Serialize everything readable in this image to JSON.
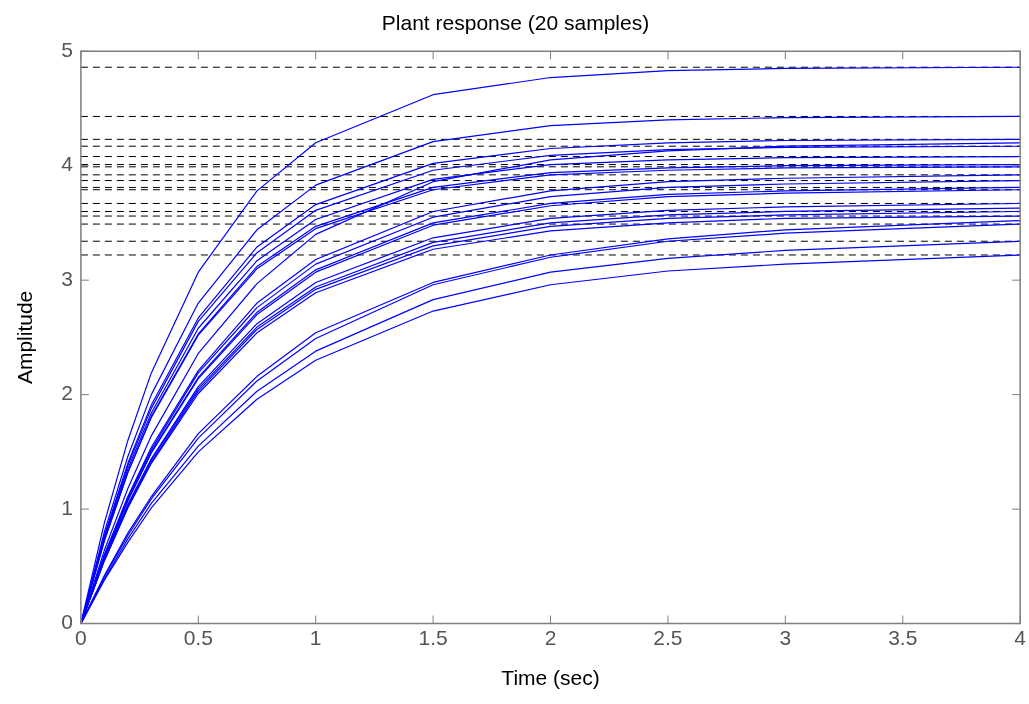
{
  "chart_data": {
    "type": "line",
    "title": "Plant response (20 samples)",
    "xlabel": "Time (sec)",
    "ylabel": "Amplitude",
    "legend": false,
    "grid": false,
    "x": [
      0,
      0.1,
      0.2,
      0.3,
      0.5,
      0.75,
      1,
      1.5,
      2,
      2.5,
      3,
      4
    ],
    "xlim": [
      0,
      4
    ],
    "xticks": [
      0,
      0.5,
      1,
      1.5,
      2,
      2.5,
      3,
      3.5,
      4
    ],
    "ylim": [
      0,
      5
    ],
    "yticks": [
      0,
      1,
      2,
      3,
      4,
      5
    ],
    "series": [
      {
        "color": "#0000ff",
        "values": [
          0,
          0.88,
          1.6,
          2.19,
          3.07,
          3.78,
          4.2,
          4.62,
          4.77,
          4.83,
          4.85,
          4.86
        ]
      },
      {
        "color": "#0000ff",
        "values": [
          0,
          0.8,
          1.46,
          2.0,
          2.8,
          3.44,
          3.83,
          4.21,
          4.35,
          4.4,
          4.42,
          4.43
        ]
      },
      {
        "color": "#0000ff",
        "values": [
          0,
          0.77,
          1.4,
          1.91,
          2.67,
          3.29,
          3.66,
          4.02,
          4.15,
          4.2,
          4.22,
          4.23
        ]
      },
      {
        "color": "#0000ff",
        "values": [
          0,
          0.75,
          1.38,
          1.88,
          2.64,
          3.24,
          3.61,
          3.96,
          4.09,
          4.14,
          4.16,
          4.17
        ]
      },
      {
        "color": "#0000ff",
        "values": [
          0,
          0.74,
          1.35,
          1.84,
          2.58,
          3.17,
          3.53,
          3.88,
          4.01,
          4.05,
          4.07,
          4.08
        ]
      },
      {
        "color": "#0000ff",
        "values": [
          0,
          0.73,
          1.32,
          1.81,
          2.53,
          3.12,
          3.47,
          3.81,
          3.94,
          3.98,
          4.0,
          4.01
        ]
      },
      {
        "color": "#0000ff",
        "values": [
          0,
          0.72,
          1.32,
          1.8,
          2.52,
          3.1,
          3.45,
          3.79,
          3.92,
          3.96,
          3.98,
          3.99
        ]
      },
      {
        "color": "#0000ff",
        "values": [
          0,
          0.64,
          1.18,
          1.64,
          2.36,
          2.97,
          3.4,
          3.86,
          4.05,
          4.13,
          4.17,
          4.2
        ]
      },
      {
        "color": "#0000ff",
        "values": [
          0,
          0.6,
          1.11,
          1.54,
          2.21,
          2.8,
          3.18,
          3.6,
          3.78,
          3.86,
          3.89,
          3.92
        ]
      },
      {
        "color": "#0000ff",
        "values": [
          0,
          0.6,
          1.1,
          1.52,
          2.19,
          2.76,
          3.14,
          3.55,
          3.73,
          3.81,
          3.84,
          3.87
        ]
      },
      {
        "color": "#0000ff",
        "values": [
          0,
          0.59,
          1.08,
          1.5,
          2.15,
          2.72,
          3.09,
          3.5,
          3.67,
          3.75,
          3.78,
          3.81
        ]
      },
      {
        "color": "#0000ff",
        "values": [
          0,
          0.58,
          1.07,
          1.49,
          2.14,
          2.7,
          3.07,
          3.48,
          3.65,
          3.73,
          3.76,
          3.79
        ]
      },
      {
        "color": "#0000ff",
        "values": [
          0,
          0.57,
          1.04,
          1.44,
          2.07,
          2.62,
          2.98,
          3.37,
          3.54,
          3.61,
          3.64,
          3.67
        ]
      },
      {
        "color": "#0000ff",
        "values": [
          0,
          0.56,
          1.03,
          1.43,
          2.05,
          2.59,
          2.94,
          3.33,
          3.5,
          3.57,
          3.6,
          3.63
        ]
      },
      {
        "color": "#0000ff",
        "values": [
          0,
          0.55,
          1.02,
          1.41,
          2.03,
          2.57,
          2.92,
          3.3,
          3.47,
          3.54,
          3.57,
          3.6
        ]
      },
      {
        "color": "#0000ff",
        "values": [
          0,
          0.55,
          1.01,
          1.4,
          2.01,
          2.54,
          2.89,
          3.27,
          3.43,
          3.5,
          3.54,
          3.56
        ]
      },
      {
        "color": "#0000ff",
        "values": [
          0,
          0.42,
          0.79,
          1.11,
          1.66,
          2.16,
          2.54,
          2.98,
          3.22,
          3.36,
          3.44,
          3.52
        ]
      },
      {
        "color": "#0000ff",
        "values": [
          0,
          0.41,
          0.77,
          1.09,
          1.62,
          2.12,
          2.49,
          2.96,
          3.2,
          3.34,
          3.41,
          3.49
        ]
      },
      {
        "color": "#0000ff",
        "values": [
          0,
          0.39,
          0.74,
          1.05,
          1.55,
          2.03,
          2.38,
          2.83,
          3.07,
          3.19,
          3.26,
          3.34
        ]
      },
      {
        "color": "#0000ff",
        "values": [
          0,
          0.38,
          0.71,
          1.01,
          1.5,
          1.96,
          2.3,
          2.73,
          2.96,
          3.08,
          3.14,
          3.22
        ]
      }
    ],
    "ref_lines": [
      {
        "axis": "y",
        "value": 4.86,
        "color": "#000000",
        "line_style": "dashed"
      },
      {
        "axis": "y",
        "value": 4.43,
        "color": "#000000",
        "line_style": "dashed"
      },
      {
        "axis": "y",
        "value": 4.23,
        "color": "#000000",
        "line_style": "dashed"
      },
      {
        "axis": "y",
        "value": 4.17,
        "color": "#000000",
        "line_style": "dashed"
      },
      {
        "axis": "y",
        "value": 4.08,
        "color": "#000000",
        "line_style": "dashed"
      },
      {
        "axis": "y",
        "value": 4.01,
        "color": "#000000",
        "line_style": "dashed"
      },
      {
        "axis": "y",
        "value": 3.99,
        "color": "#000000",
        "line_style": "dashed"
      },
      {
        "axis": "y",
        "value": 3.92,
        "color": "#000000",
        "line_style": "dashed"
      },
      {
        "axis": "y",
        "value": 3.87,
        "color": "#000000",
        "line_style": "dashed"
      },
      {
        "axis": "y",
        "value": 3.81,
        "color": "#000000",
        "line_style": "dashed"
      },
      {
        "axis": "y",
        "value": 3.79,
        "color": "#000000",
        "line_style": "dashed"
      },
      {
        "axis": "y",
        "value": 3.67,
        "color": "#000000",
        "line_style": "dashed"
      },
      {
        "axis": "y",
        "value": 3.6,
        "color": "#000000",
        "line_style": "dashed"
      },
      {
        "axis": "y",
        "value": 3.56,
        "color": "#000000",
        "line_style": "dashed"
      },
      {
        "axis": "y",
        "value": 3.49,
        "color": "#000000",
        "line_style": "dashed"
      },
      {
        "axis": "y",
        "value": 3.34,
        "color": "#000000",
        "line_style": "dashed"
      },
      {
        "axis": "y",
        "value": 3.22,
        "color": "#000000",
        "line_style": "dashed"
      }
    ]
  }
}
